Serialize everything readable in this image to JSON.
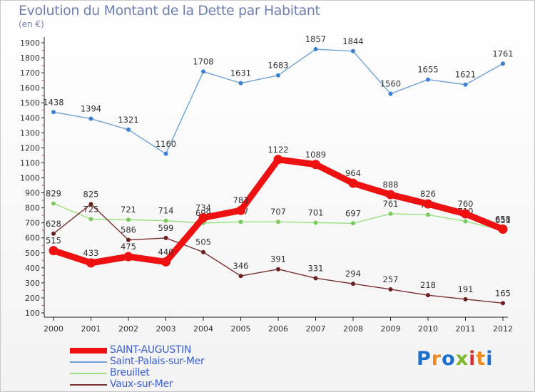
{
  "title": "Evolution du Montant de la Dette par Habitant",
  "subtitle": "(en €)",
  "logo": {
    "text": "Proxiti",
    "letters": [
      "P",
      "r",
      "o",
      "x",
      "i",
      "t",
      "i"
    ],
    "colors": [
      "#1a6fd1",
      "#f08a1c",
      "#1a6fd1",
      "#7cb82f",
      "#d92e2e",
      "#f08a1c",
      "#1a6fd1"
    ]
  },
  "chart_data": {
    "type": "line",
    "x": [
      "2000",
      "2001",
      "2002",
      "2003",
      "2004",
      "2005",
      "2006",
      "2007",
      "2008",
      "2009",
      "2010",
      "2011",
      "2012"
    ],
    "ylim": [
      100,
      1900
    ],
    "yticks": [
      100,
      200,
      300,
      400,
      500,
      600,
      700,
      800,
      900,
      1000,
      1100,
      1200,
      1300,
      1400,
      1500,
      1600,
      1700,
      1800,
      1900
    ],
    "grid": false,
    "legend_position": "bottom-left",
    "series": [
      {
        "name": "Saint-Palais-sur-Mer",
        "color": "#6fa2d8",
        "marker": "#3a7fd0",
        "values": [
          1438,
          1394,
          1321,
          1160,
          1708,
          1631,
          1683,
          1857,
          1844,
          1560,
          1655,
          1621,
          1761
        ]
      },
      {
        "name": "Breuillet",
        "color": "#98e07c",
        "marker": "#7cc960",
        "values": [
          829,
          725,
          721,
          714,
          699,
          707,
          707,
          701,
          697,
          761,
          754,
          710,
          651
        ]
      },
      {
        "name": "Vaux-sur-Mer",
        "color": "#7a2f2f",
        "marker": "#6b2020",
        "values": [
          628,
          825,
          586,
          599,
          505,
          346,
          391,
          331,
          294,
          257,
          218,
          191,
          165
        ]
      },
      {
        "name": "SAINT-AUGUSTIN",
        "color": "#ee1111",
        "marker": "#ee1111",
        "values": [
          515,
          433,
          475,
          440,
          734,
          783,
          1122,
          1089,
          964,
          888,
          826,
          760,
          658
        ]
      }
    ],
    "legend_order": [
      "SAINT-AUGUSTIN",
      "Saint-Palais-sur-Mer",
      "Breuillet",
      "Vaux-sur-Mer"
    ]
  }
}
